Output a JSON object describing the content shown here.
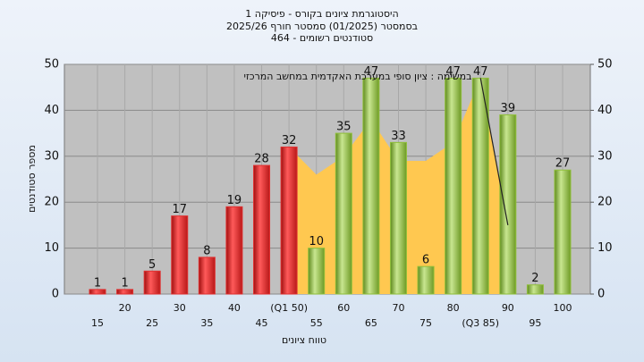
{
  "chart_data": {
    "type": "bar",
    "title": "היסטוגרמת ציונים בקורס - פיסיקה 1",
    "subtitle": "בסמסטר  (01/2025)  סמסטר חורף  2025/26",
    "subtitle2": "סטודנטים רשומים - 464",
    "annotation": "במשימה : ציון סופי במערכת האקדמית במחשב המרכזי",
    "x_label": "טווח ציונים",
    "y_label": "מספר סטודנטים",
    "categories": [
      "15",
      "20",
      "25",
      "30",
      "35",
      "40",
      "45",
      "(Q1 50)",
      "55",
      "60",
      "65",
      "70",
      "75",
      "80",
      "(Q3 85)",
      "90",
      "95",
      "100"
    ],
    "values": [
      1,
      1,
      5,
      17,
      8,
      19,
      28,
      32,
      10,
      35,
      47,
      33,
      6,
      47,
      47,
      39,
      2,
      27
    ],
    "colors": [
      "#e03030",
      "#e03030",
      "#e03030",
      "#e03030",
      "#e03030",
      "#e03030",
      "#e03030",
      "#e03030",
      "#8fbf3a",
      "#8fbf3a",
      "#8fbf3a",
      "#8fbf3a",
      "#8fbf3a",
      "#8fbf3a",
      "#8fbf3a",
      "#8fbf3a",
      "#8fbf3a",
      "#8fbf3a"
    ],
    "area": {
      "color": "#ffc850",
      "values": [
        null,
        null,
        null,
        null,
        null,
        null,
        null,
        32,
        26,
        30,
        38,
        29,
        29,
        33,
        47,
        15,
        null,
        null
      ]
    },
    "trend_line": {
      "color": "#222222",
      "values": [
        null,
        null,
        null,
        null,
        null,
        null,
        null,
        null,
        null,
        null,
        null,
        null,
        null,
        null,
        47,
        15,
        null,
        null
      ]
    },
    "ylim": [
      0,
      50
    ],
    "yticks": [
      0,
      10,
      20,
      30,
      40,
      50
    ],
    "y2lim": [
      0,
      50
    ],
    "y2ticks": [
      0,
      10,
      20,
      30,
      40,
      50
    ],
    "grid": true
  }
}
